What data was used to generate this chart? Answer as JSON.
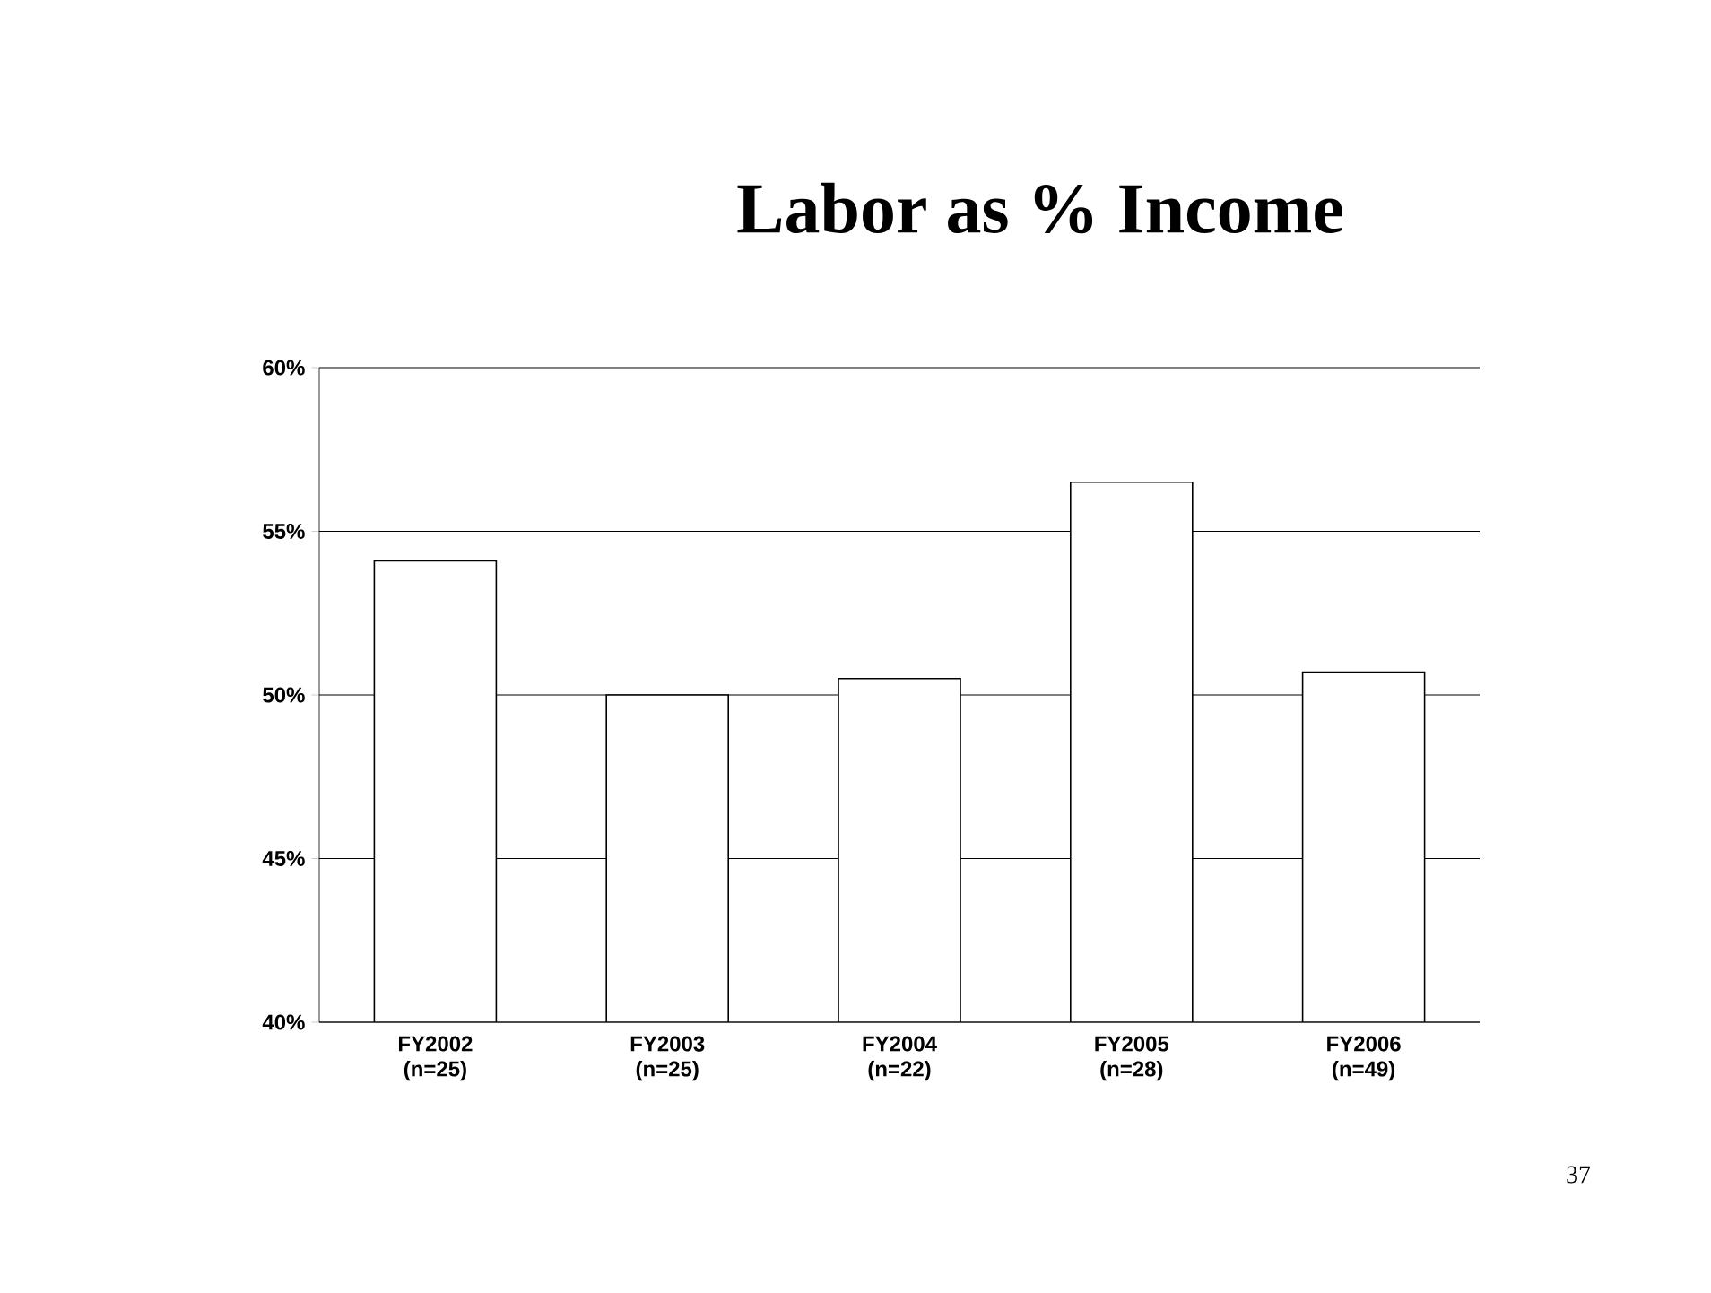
{
  "chart_data": {
    "type": "bar",
    "title": "Labor as % Income",
    "categories": [
      "FY2002 (n=25)",
      "FY2003 (n=25)",
      "FY2004 (n=22)",
      "FY2005 (n=28)",
      "FY2006 (n=49)"
    ],
    "values": [
      54.1,
      50.0,
      50.5,
      56.5,
      50.7
    ],
    "color": "#ffffff",
    "ylim": [
      40,
      60
    ],
    "yticks": [
      {
        "value": 40,
        "label": "40%"
      },
      {
        "value": 45,
        "label": "45%"
      },
      {
        "value": 50,
        "label": "50%"
      },
      {
        "value": 55,
        "label": "55%"
      },
      {
        "value": 60,
        "label": "60%"
      }
    ],
    "grid": "y",
    "annotations": [
      "37"
    ]
  }
}
